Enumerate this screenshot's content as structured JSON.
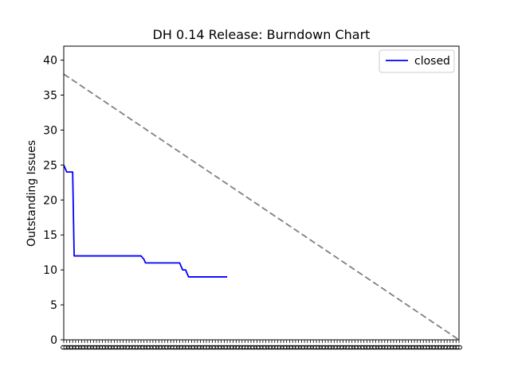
{
  "chart_data": {
    "type": "line",
    "title": "DH 0.14 Release: Burndown Chart",
    "xlabel": "",
    "ylabel": "Outstanding Issues",
    "ylim": [
      0,
      42
    ],
    "yticks": [
      0,
      5,
      10,
      15,
      20,
      25,
      30,
      35,
      40
    ],
    "x_range": [
      0,
      133
    ],
    "x_tick_count": 134,
    "x_tick_text": "0",
    "legend": {
      "position": "top-right",
      "entries": [
        "closed"
      ]
    },
    "colors": {
      "closed": "#0000ff",
      "ideal": "#808080"
    },
    "series": [
      {
        "name": "closed",
        "style": "solid",
        "x": [
          0,
          1,
          2,
          3,
          3.5,
          26,
          27,
          27.5,
          39,
          40,
          41,
          42,
          43,
          55
        ],
        "y": [
          25,
          24,
          24,
          24,
          12,
          12,
          11.5,
          11,
          11,
          10,
          10,
          9,
          9,
          9
        ]
      },
      {
        "style": "dashed",
        "x": [
          0,
          133
        ],
        "y": [
          38,
          0
        ]
      }
    ]
  }
}
